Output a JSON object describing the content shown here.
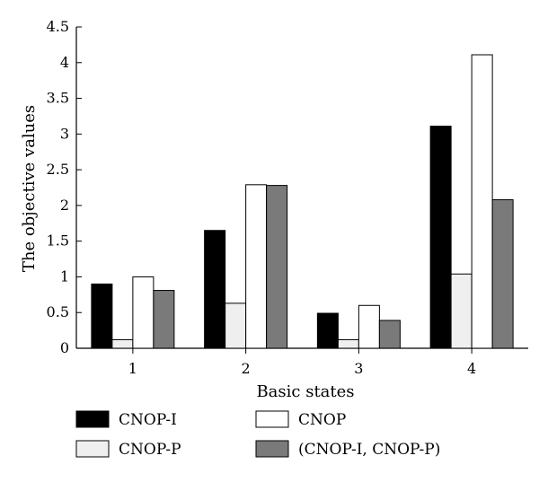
{
  "chart_data": {
    "type": "bar",
    "xlabel": "Basic states",
    "ylabel": "The objective values",
    "categories": [
      "1",
      "2",
      "3",
      "4"
    ],
    "ylim": [
      0,
      4.5
    ],
    "yticks": [
      "0",
      "0.5",
      "1",
      "1.5",
      "2",
      "2.5",
      "3",
      "3.5",
      "4",
      "4.5"
    ],
    "grid": false,
    "legend_position": "bottom",
    "series": [
      {
        "name": "CNOP-I",
        "color": "#000000",
        "values": [
          0.9,
          1.65,
          0.49,
          3.11
        ]
      },
      {
        "name": "CNOP-P",
        "color": "#efefef",
        "values": [
          0.12,
          0.63,
          0.12,
          1.04
        ]
      },
      {
        "name": "CNOP",
        "color": "#ffffff",
        "values": [
          1.0,
          2.29,
          0.6,
          4.11
        ]
      },
      {
        "name": "(CNOP-I, CNOP-P)",
        "color": "#7a7a7a",
        "values": [
          0.81,
          2.28,
          0.39,
          2.08
        ]
      }
    ]
  }
}
